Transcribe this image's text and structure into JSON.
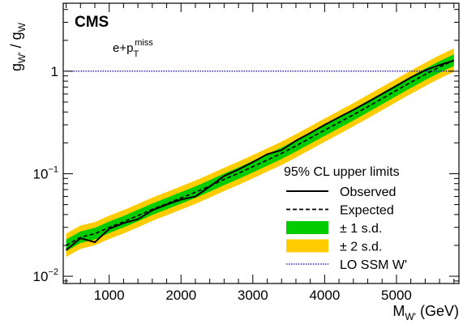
{
  "chart_data": {
    "type": "line",
    "experiment": "CMS",
    "channel": {
      "main": "e+p",
      "sub": "T",
      "sup": "miss"
    },
    "xlabel": {
      "main": "M",
      "sub": "W'",
      "unit": " (GeV)"
    },
    "ylabel": {
      "main1": "g",
      "sub1": "W'",
      "sep": " / ",
      "main2": "g",
      "sub2": "W"
    },
    "xlim": [
      360,
      5870
    ],
    "ylim": [
      0.0085,
      4.6
    ],
    "yscale": "log",
    "x_ticks": [
      {
        "value": 1000,
        "label": "1000"
      },
      {
        "value": 2000,
        "label": "2000"
      },
      {
        "value": 3000,
        "label": "3000"
      },
      {
        "value": 4000,
        "label": "4000"
      },
      {
        "value": 5000,
        "label": "5000"
      }
    ],
    "y_ticks": [
      {
        "value": 0.01,
        "base": "10",
        "exp": "−2",
        "label": ""
      },
      {
        "value": 0.1,
        "base": "10",
        "exp": "−1",
        "label": ""
      },
      {
        "value": 1,
        "base": "",
        "exp": "",
        "label": "1"
      }
    ],
    "grid": false,
    "legend": {
      "title": "95% CL upper limits",
      "placement": "bottom-right",
      "entries": [
        {
          "label": "Observed",
          "kind": "solid-line"
        },
        {
          "label": "Expected",
          "kind": "dashed-line"
        },
        {
          "label": "± 1 s.d.",
          "kind": "band-1sd"
        },
        {
          "label": "± 2 s.d.",
          "kind": "band-2sd"
        },
        {
          "label": "LO SSM W'",
          "kind": "dotted-line"
        }
      ]
    },
    "colors": {
      "observed": "#000000",
      "expected": "#000000",
      "band_1sd": "#00cc00",
      "band_2sd": "#ffcc00",
      "ssm": "#0000cc"
    },
    "x": [
      400,
      600,
      800,
      1000,
      1200,
      1400,
      1600,
      1800,
      2000,
      2200,
      2400,
      2600,
      2800,
      3000,
      3200,
      3400,
      3600,
      3800,
      4000,
      4200,
      4400,
      4600,
      4800,
      5000,
      5200,
      5400,
      5600,
      5800
    ],
    "series": [
      {
        "name": "Observed",
        "values": [
          0.018,
          0.0235,
          0.0215,
          0.029,
          0.033,
          0.036,
          0.044,
          0.05,
          0.056,
          0.06,
          0.075,
          0.095,
          0.11,
          0.13,
          0.155,
          0.17,
          0.21,
          0.25,
          0.3,
          0.355,
          0.42,
          0.5,
          0.6,
          0.72,
          0.87,
          1.02,
          1.15,
          1.27
        ]
      },
      {
        "name": "Expected",
        "values": [
          0.02,
          0.024,
          0.026,
          0.03,
          0.034,
          0.039,
          0.045,
          0.051,
          0.058,
          0.066,
          0.076,
          0.088,
          0.101,
          0.117,
          0.136,
          0.158,
          0.187,
          0.223,
          0.266,
          0.316,
          0.376,
          0.45,
          0.54,
          0.65,
          0.78,
          0.93,
          1.1,
          1.28
        ]
      },
      {
        "name": "LO SSM W'",
        "values": [
          1,
          1,
          1,
          1,
          1,
          1,
          1,
          1,
          1,
          1,
          1,
          1,
          1,
          1,
          1,
          1,
          1,
          1,
          1,
          1,
          1,
          1,
          1,
          1,
          1,
          1,
          1,
          1
        ]
      }
    ],
    "band_1sd_factors": [
      0.88,
      1.14
    ],
    "band_2sd_factors": [
      0.77,
      1.3
    ]
  }
}
